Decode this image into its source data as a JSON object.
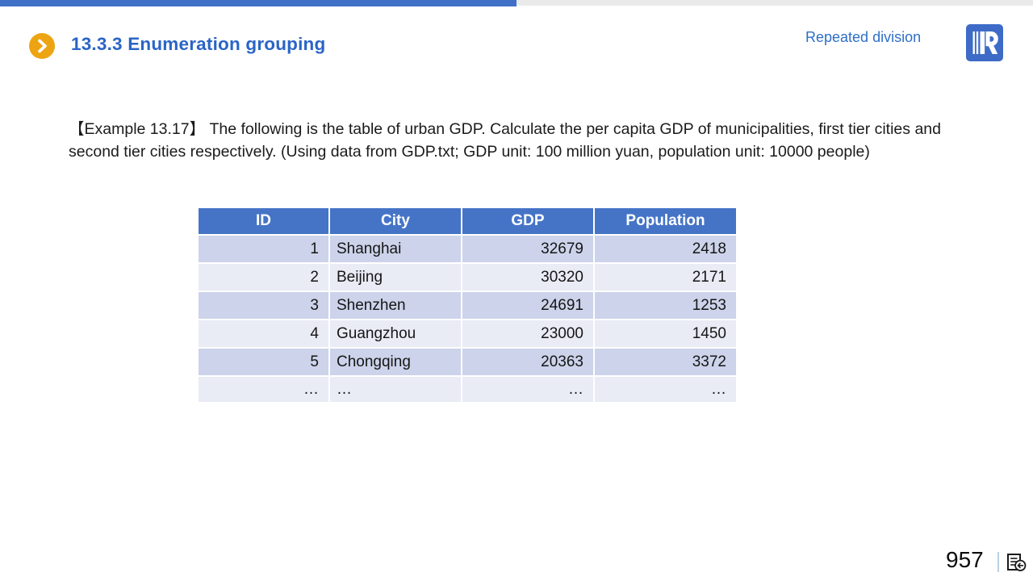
{
  "slide": {
    "title": "13.3.3 Enumeration grouping",
    "corner_label": "Repeated division",
    "page_number": "957"
  },
  "example": {
    "text": "【Example 13.17】 The following is the table of urban GDP. Calculate the per capita GDP of municipalities, first tier cities and second tier cities respectively. (Using data from GDP.txt; GDP unit: 100 million yuan, population unit: 10000 people)"
  },
  "table": {
    "columns": [
      "ID",
      "City",
      "GDP",
      "Population"
    ],
    "rows": [
      [
        "1",
        "Shanghai",
        "32679",
        "2418"
      ],
      [
        "2",
        "Beijing",
        "30320",
        "2171"
      ],
      [
        "3",
        "Shenzhen",
        "24691",
        "1253"
      ],
      [
        "4",
        "Guangzhou",
        "23000",
        "1450"
      ],
      [
        "5",
        "Chongqing",
        "20363",
        "3372"
      ],
      [
        "…",
        "…",
        "…",
        "…"
      ]
    ]
  },
  "icons": {
    "title_bullet": "chevron-right-circle",
    "brand": "r-book-logo",
    "footer": "document-return-icon"
  },
  "colors": {
    "accent_bar_blue": "#4070C8",
    "accent_bar_gray": "#EAEAEA",
    "title_blue": "#2A64C6",
    "corner_blue": "#2E6FC6",
    "bullet_orange": "#EDA412",
    "table_header_blue": "#4574C7",
    "row_band_dark": "#CCD3EA",
    "row_band_light": "#E9EBF5",
    "logo_blue": "#3D6BC7"
  }
}
